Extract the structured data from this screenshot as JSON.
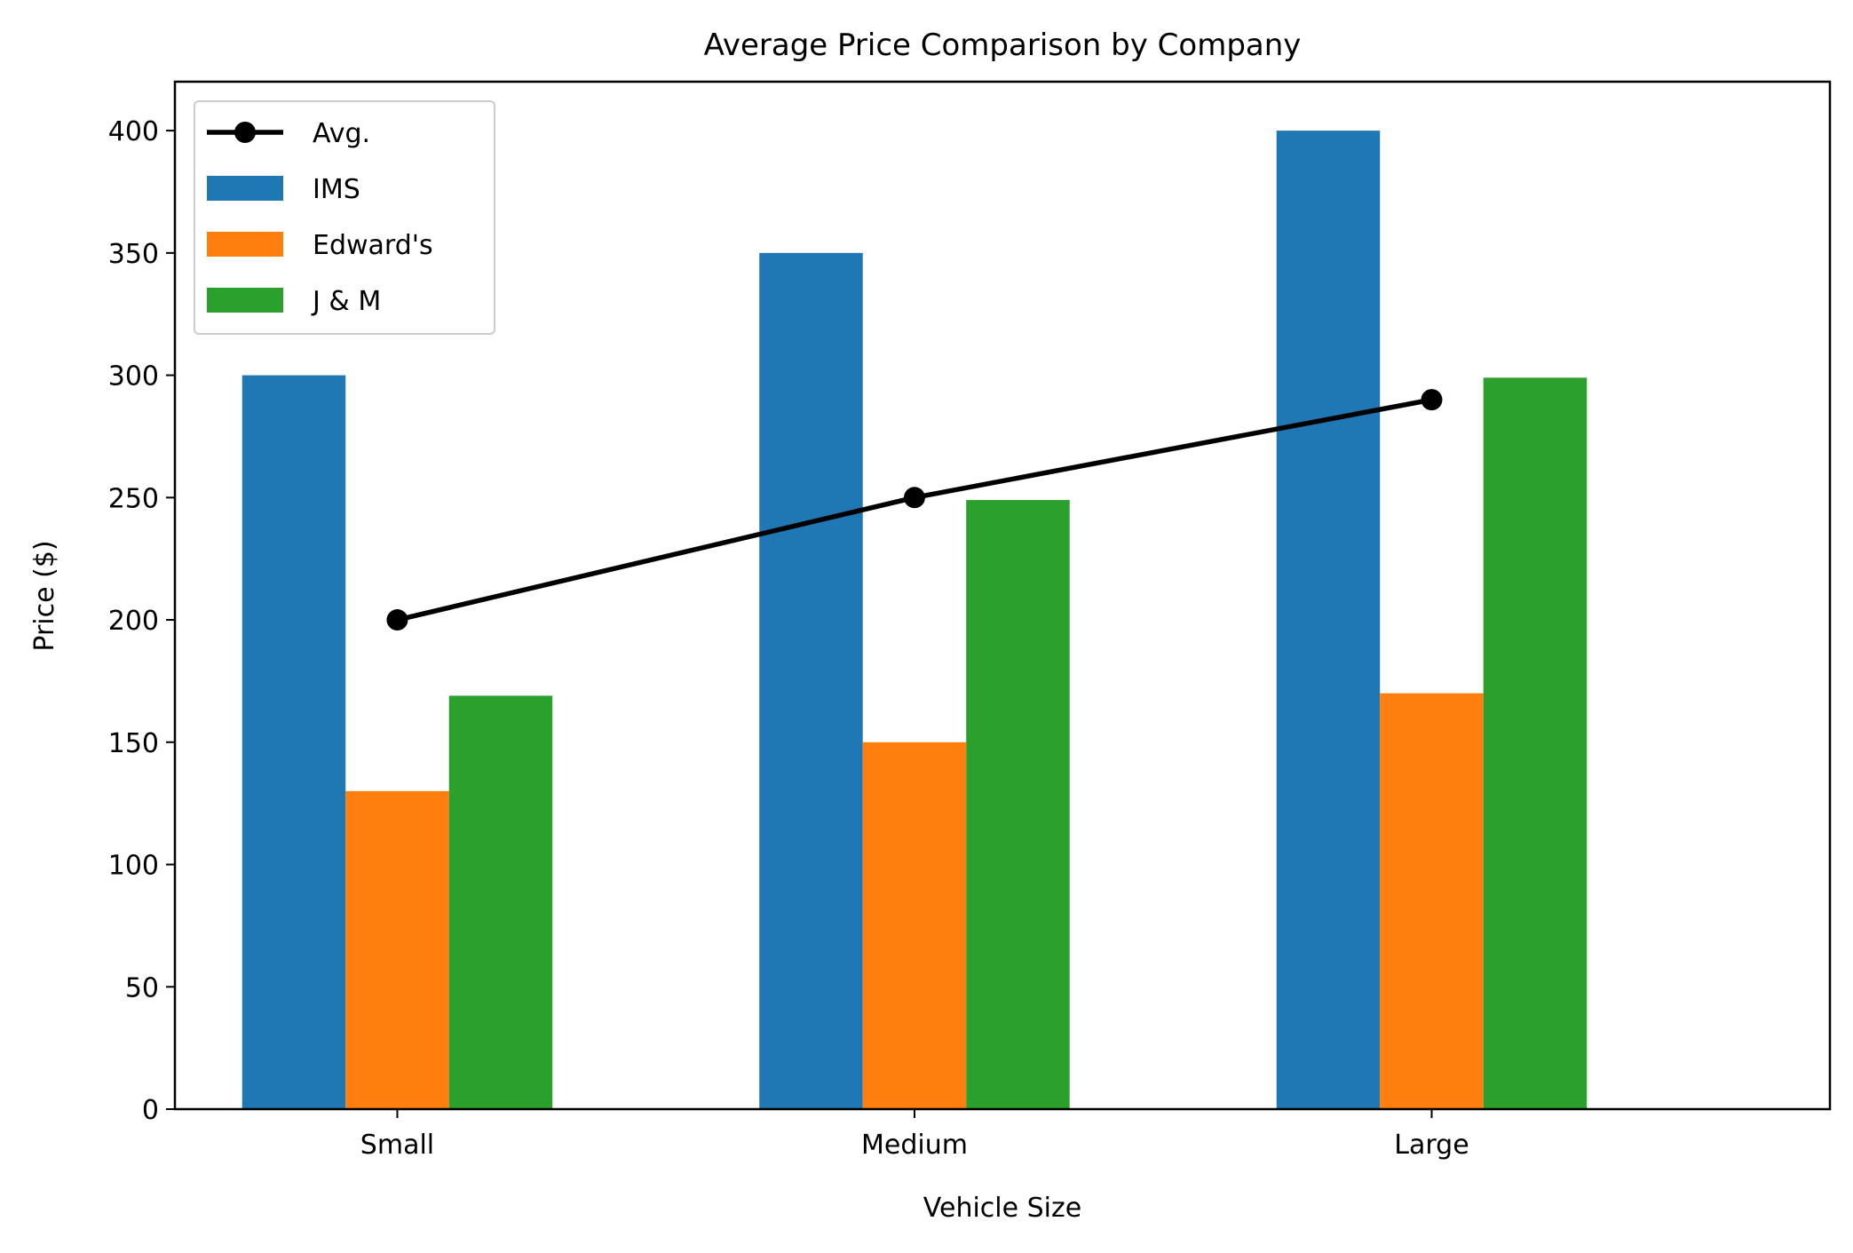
{
  "chart_data": {
    "type": "bar",
    "title": "Average Price Comparison by Company",
    "xlabel": "Vehicle Size",
    "ylabel": "Price ($)",
    "categories": [
      "Small",
      "Medium",
      "Large"
    ],
    "ylim": [
      0,
      420
    ],
    "yticks": [
      0,
      50,
      100,
      150,
      200,
      250,
      300,
      350,
      400
    ],
    "grid": false,
    "legend_position": "top-left",
    "series": [
      {
        "name": "IMS",
        "type": "bar",
        "color": "#1f77b4",
        "values": [
          300,
          350,
          400
        ]
      },
      {
        "name": "Edward's",
        "type": "bar",
        "color": "#ff7f0e",
        "values": [
          130,
          150,
          170
        ]
      },
      {
        "name": "J & M",
        "type": "bar",
        "color": "#2ca02c",
        "values": [
          169,
          249,
          299
        ]
      }
    ],
    "line_series": {
      "name": "Avg.",
      "type": "line",
      "color": "#000000",
      "marker": "circle",
      "values": [
        200,
        250,
        290
      ]
    }
  }
}
